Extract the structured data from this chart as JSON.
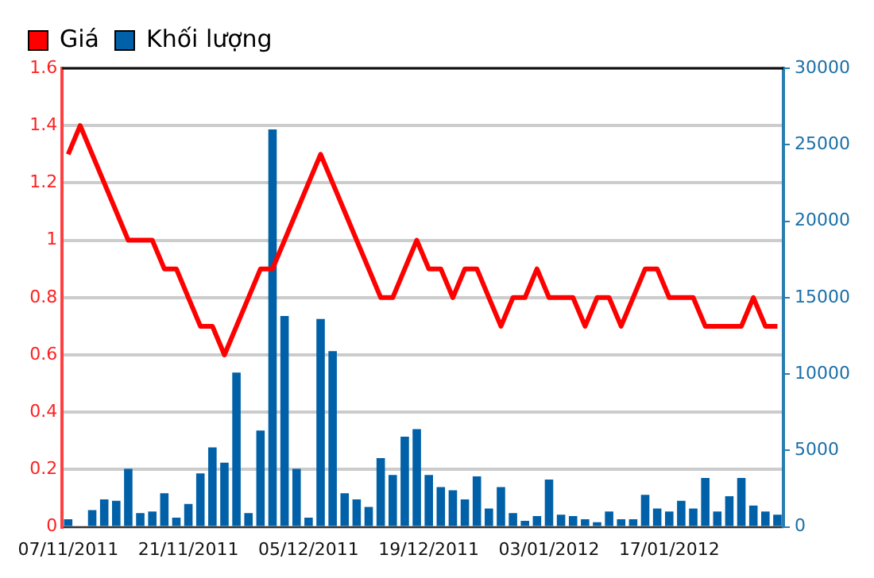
{
  "chart_data": {
    "type": "line",
    "categories": [
      "07/11/2011",
      null,
      null,
      null,
      null,
      null,
      null,
      null,
      null,
      null,
      "21/11/2011",
      null,
      null,
      null,
      null,
      null,
      null,
      null,
      null,
      null,
      "05/12/2011",
      null,
      null,
      null,
      null,
      null,
      null,
      null,
      null,
      null,
      "19/12/2011",
      null,
      null,
      null,
      null,
      null,
      null,
      null,
      null,
      null,
      "03/01/2012",
      null,
      null,
      null,
      null,
      null,
      null,
      null,
      null,
      null,
      "17/01/2012",
      null,
      null,
      null,
      null,
      null,
      null,
      null,
      null,
      null
    ],
    "series": [
      {
        "name": "Giá",
        "color": "#ff0000",
        "values": [
          1.3,
          1.4,
          1.3,
          1.2,
          1.1,
          1.0,
          1.0,
          1.0,
          0.9,
          0.9,
          0.8,
          0.7,
          0.7,
          0.6,
          0.7,
          0.8,
          0.9,
          0.9,
          1.0,
          1.1,
          1.2,
          1.3,
          1.2,
          1.1,
          1.0,
          0.9,
          0.8,
          0.8,
          0.9,
          1.0,
          0.9,
          0.9,
          0.8,
          0.9,
          0.9,
          0.8,
          0.7,
          0.8,
          0.8,
          0.9,
          0.8,
          0.8,
          0.8,
          0.7,
          0.8,
          0.8,
          0.7,
          0.8,
          0.9,
          0.9,
          0.8,
          0.8,
          0.8,
          0.7,
          0.7,
          0.7,
          0.7,
          0.8,
          0.7,
          0.7
        ]
      },
      {
        "name": "Khối lượng",
        "type": "bar",
        "axis": "y2",
        "color": "#0060a8",
        "values": [
          500,
          0,
          1100,
          1800,
          1700,
          3800,
          900,
          1000,
          2200,
          600,
          1500,
          3500,
          5200,
          4200,
          10100,
          900,
          6300,
          26000,
          13800,
          3800,
          600,
          13600,
          11500,
          2200,
          1800,
          1300,
          4500,
          3400,
          5900,
          6400,
          3400,
          2600,
          2400,
          1800,
          3300,
          1200,
          2600,
          900,
          400,
          700,
          3100,
          800,
          700,
          500,
          300,
          1000,
          500,
          500,
          2100,
          1200,
          1000,
          1700,
          1200,
          3200,
          1000,
          2000,
          3200,
          1400,
          1000,
          800
        ]
      }
    ],
    "ylim": [
      0,
      1.6
    ],
    "yticks": [
      0,
      0.2,
      0.4,
      0.6,
      0.8,
      1,
      1.2,
      1.4,
      1.6
    ],
    "y2lim": [
      0,
      30000
    ],
    "y2ticks": [
      0,
      5000,
      10000,
      15000,
      20000,
      25000,
      30000
    ],
    "grid": "y",
    "legend": "top left",
    "marker": "none",
    "line_style": "solid"
  }
}
